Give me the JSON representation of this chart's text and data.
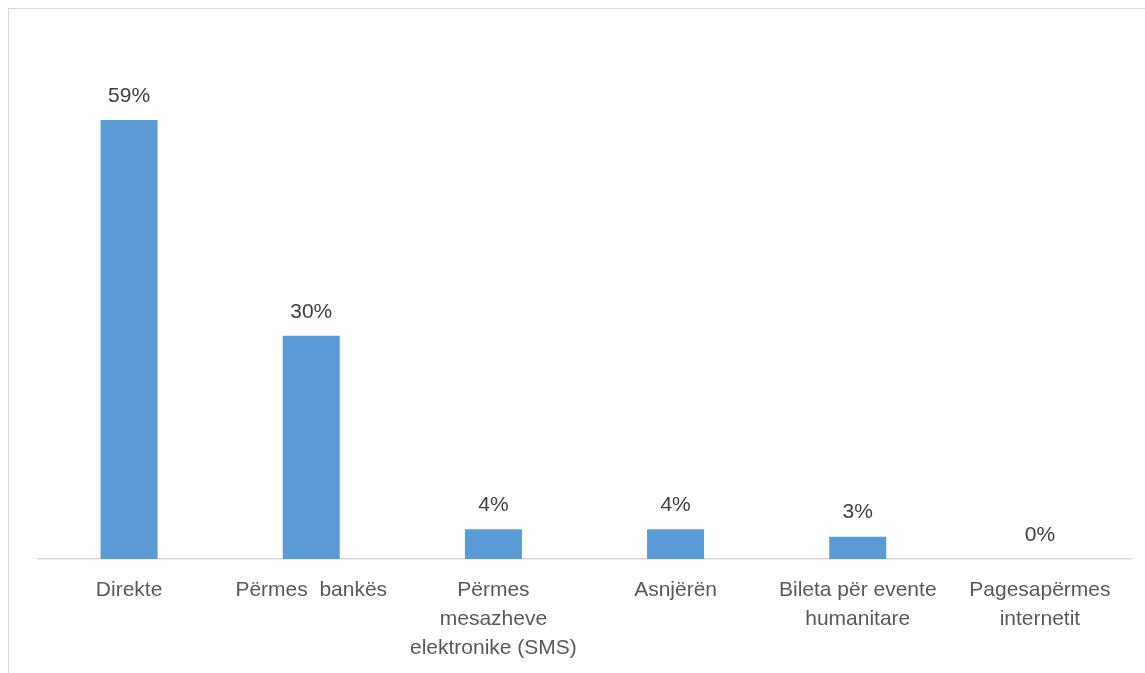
{
  "chart_data": {
    "type": "bar",
    "categories": [
      "Direkte",
      "Përmes  bankës",
      "Përmes mesazheve elektronike (SMS)",
      "Asnjërën",
      "Bileta për evente humanitare",
      "Pagesapërmes internetit"
    ],
    "values": [
      59,
      30,
      4,
      4,
      3,
      0
    ],
    "value_labels": [
      "59%",
      "30%",
      "4%",
      "4%",
      "3%",
      "0%"
    ],
    "color": "#5b9bd5"
  }
}
